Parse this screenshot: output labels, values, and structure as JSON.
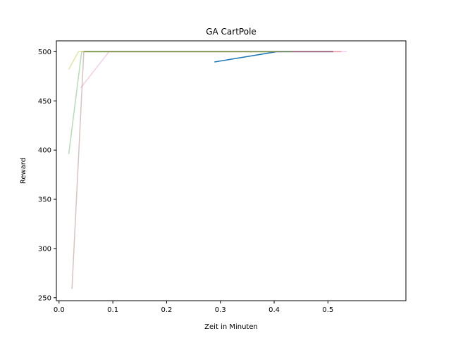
{
  "chart_data": {
    "type": "line",
    "title": "GA CartPole",
    "xlabel": "Zeit in Minuten",
    "ylabel": "Reward",
    "xlim": [
      -0.005,
      0.645
    ],
    "ylim": [
      247,
      511
    ],
    "xticks": [
      0.0,
      0.1,
      0.2,
      0.3,
      0.4,
      0.5
    ],
    "xtick_labels": [
      "0.0",
      "0.1",
      "0.2",
      "0.3",
      "0.4",
      "0.5"
    ],
    "yticks": [
      250,
      300,
      350,
      400,
      450,
      500
    ],
    "ytick_labels": [
      "250",
      "300",
      "350",
      "400",
      "450",
      "500"
    ],
    "grid": false,
    "legend": false,
    "series": [
      {
        "color": "#1f77b4",
        "opacity": 1.0,
        "points": [
          [
            0.289,
            489.5
          ],
          [
            0.405,
            500
          ],
          [
            0.51,
            500
          ]
        ]
      },
      {
        "color": "#2ca02c",
        "opacity": 0.35,
        "points": [
          [
            0.018,
            396
          ],
          [
            0.042,
            500
          ],
          [
            0.405,
            500
          ]
        ]
      },
      {
        "color": "#bcbd22",
        "opacity": 0.4,
        "points": [
          [
            0.018,
            482
          ],
          [
            0.036,
            500
          ],
          [
            0.405,
            500
          ]
        ]
      },
      {
        "color": "#e377c2",
        "opacity": 0.35,
        "points": [
          [
            0.04,
            463
          ],
          [
            0.093,
            500
          ],
          [
            0.535,
            500
          ]
        ]
      },
      {
        "color": "#8c564b",
        "opacity": 0.35,
        "points": [
          [
            0.024,
            259
          ],
          [
            0.046,
            500
          ],
          [
            0.51,
            500
          ]
        ]
      },
      {
        "color": "#d62728",
        "opacity": 0.35,
        "points": [
          [
            0.046,
            500
          ],
          [
            0.525,
            500
          ]
        ]
      },
      {
        "color": "#2ca02c",
        "opacity": 0.55,
        "points": [
          [
            0.048,
            500
          ],
          [
            0.433,
            500
          ]
        ]
      }
    ]
  }
}
